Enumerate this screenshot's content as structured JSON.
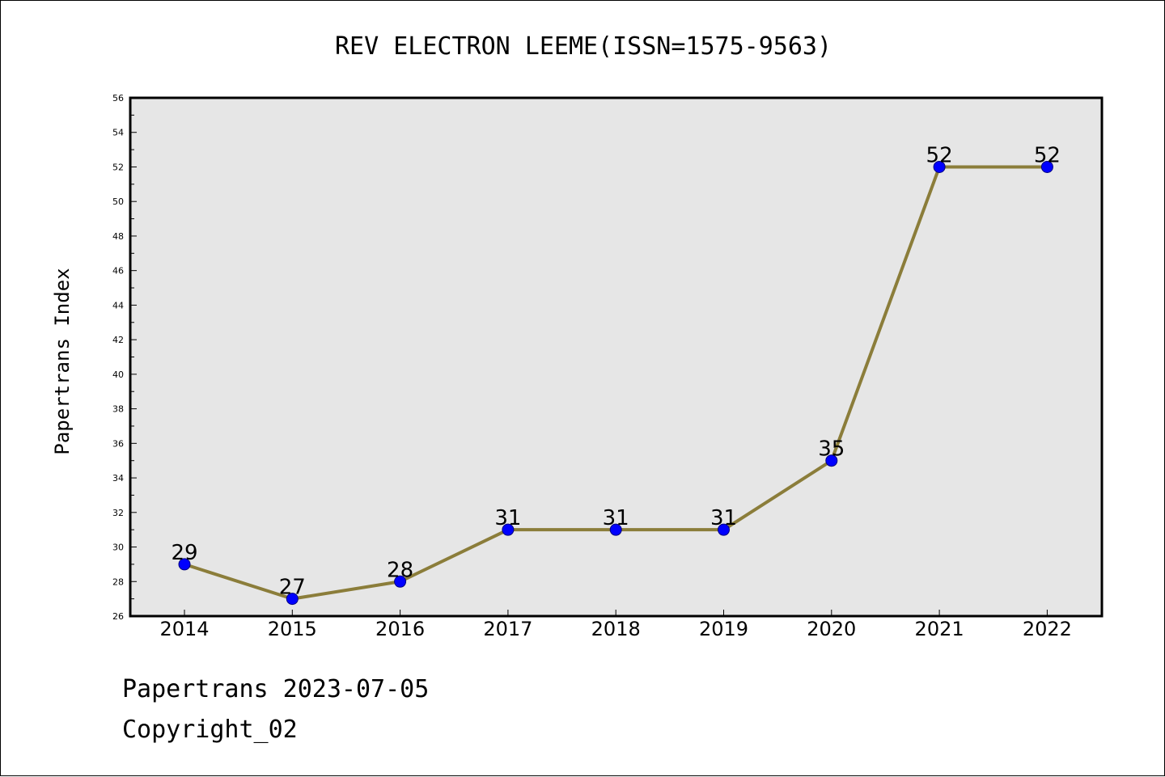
{
  "chart_data": {
    "type": "line",
    "title": "REV ELECTRON LEEME(ISSN=1575-9563)",
    "xlabel": "",
    "ylabel": "Papertrans Index",
    "categories": [
      "2014",
      "2015",
      "2016",
      "2017",
      "2018",
      "2019",
      "2020",
      "2021",
      "2022"
    ],
    "series": [
      {
        "values": [
          29,
          27,
          28,
          31,
          31,
          31,
          35,
          52,
          52
        ]
      }
    ],
    "ylim": [
      26,
      56
    ],
    "yticks": [
      26,
      28,
      30,
      32,
      34,
      36,
      38,
      40,
      42,
      44,
      46,
      48,
      50,
      52,
      54,
      56
    ],
    "grid": false,
    "legend": "none",
    "data_labels": true
  },
  "colors": {
    "line": "#8b7d3a",
    "marker_fill": "#0000ff",
    "marker_stroke": "#000080",
    "plot_background": "#e6e6e6"
  },
  "footer": {
    "line1": "Papertrans 2023-07-05",
    "line2": "Copyright_02"
  }
}
